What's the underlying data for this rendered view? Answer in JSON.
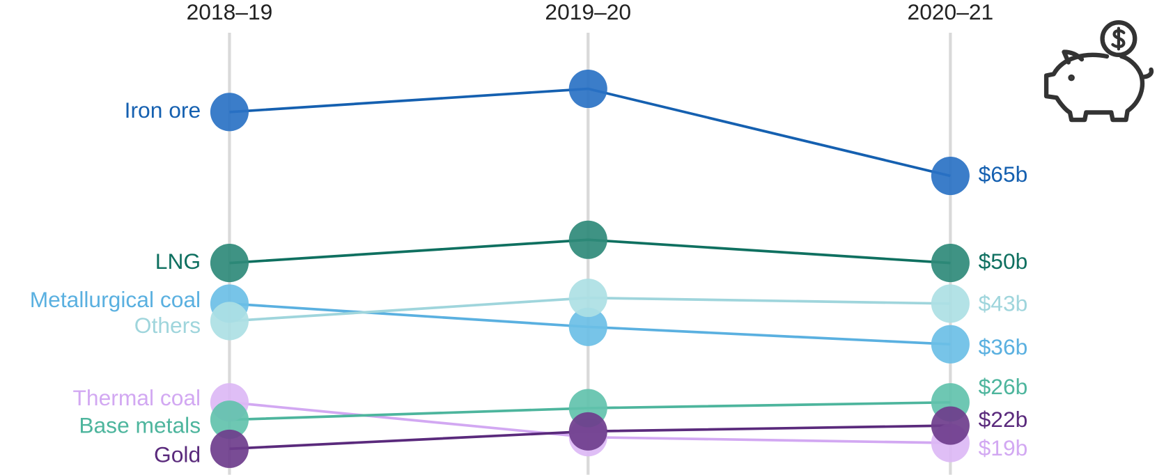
{
  "chart_data": {
    "type": "line",
    "categories": [
      "2018–19",
      "2019–20",
      "2020–21"
    ],
    "series": [
      {
        "name": "Iron ore",
        "color": "#1560b0",
        "values": [
          76,
          80,
          65
        ],
        "value_labels": [
          null,
          null,
          "$65b"
        ]
      },
      {
        "name": "LNG",
        "color": "#0f7060",
        "values": [
          50,
          54,
          50
        ],
        "value_labels": [
          null,
          null,
          "$50b"
        ]
      },
      {
        "name": "Metallurgical coal",
        "color": "#5ab0e0",
        "values": [
          43,
          39,
          36
        ],
        "value_labels": [
          null,
          null,
          "$36b"
        ]
      },
      {
        "name": "Others",
        "color": "#9fd5dc",
        "values": [
          40,
          44,
          43
        ],
        "value_labels": [
          null,
          null,
          "$43b"
        ]
      },
      {
        "name": "Thermal coal",
        "color": "#d2a8f2",
        "values": [
          26,
          20,
          19
        ],
        "value_labels": [
          null,
          null,
          "$19b"
        ]
      },
      {
        "name": "Base metals",
        "color": "#4db59d",
        "values": [
          23,
          25,
          26
        ],
        "value_labels": [
          null,
          null,
          "$26b"
        ]
      },
      {
        "name": "Gold",
        "color": "#5a2a7c",
        "values": [
          18,
          21,
          22
        ],
        "value_labels": [
          null,
          null,
          "$22b"
        ]
      }
    ]
  }
}
